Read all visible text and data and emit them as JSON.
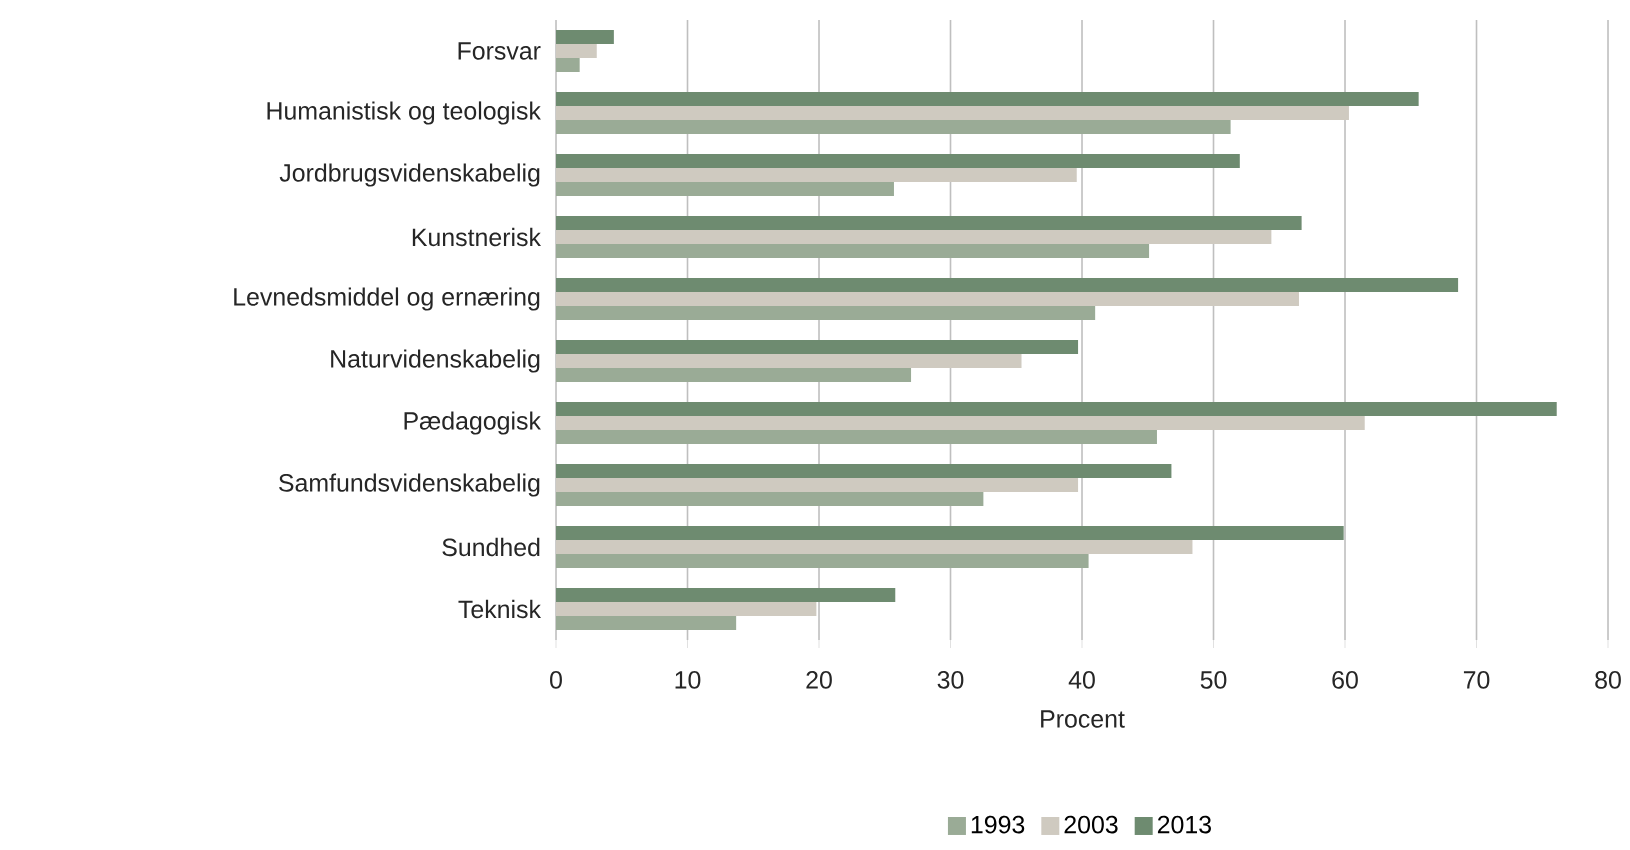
{
  "chart_data": {
    "type": "bar",
    "orientation": "horizontal",
    "xlabel": "Procent",
    "categories": [
      "Forsvar",
      "Humanistisk og teologisk",
      "Jordbrugsvidenskabelig",
      "Kunstnerisk",
      "Levnedsmiddel og ernæring",
      "Naturvidenskabelig",
      "Pædagogisk",
      "Samfundsvidenskabelig",
      "Sundhed",
      "Teknisk"
    ],
    "series": [
      {
        "name": "1993",
        "color": "#9aab96",
        "values": [
          1.8,
          51.3,
          25.7,
          45.1,
          41.0,
          27.0,
          45.7,
          32.5,
          40.5,
          13.7
        ]
      },
      {
        "name": "2003",
        "color": "#cfcac0",
        "values": [
          3.1,
          60.3,
          39.6,
          54.4,
          56.5,
          35.4,
          61.5,
          39.7,
          48.4,
          19.8
        ]
      },
      {
        "name": "2013",
        "color": "#6e8b70",
        "values": [
          4.4,
          65.6,
          52.0,
          56.7,
          68.6,
          39.7,
          76.1,
          46.8,
          59.9,
          25.8
        ]
      }
    ],
    "xlim": [
      0,
      80
    ],
    "xticks": [
      0,
      10,
      20,
      30,
      40,
      50,
      60,
      70,
      80
    ],
    "grid": "x",
    "legend": "bottom"
  }
}
